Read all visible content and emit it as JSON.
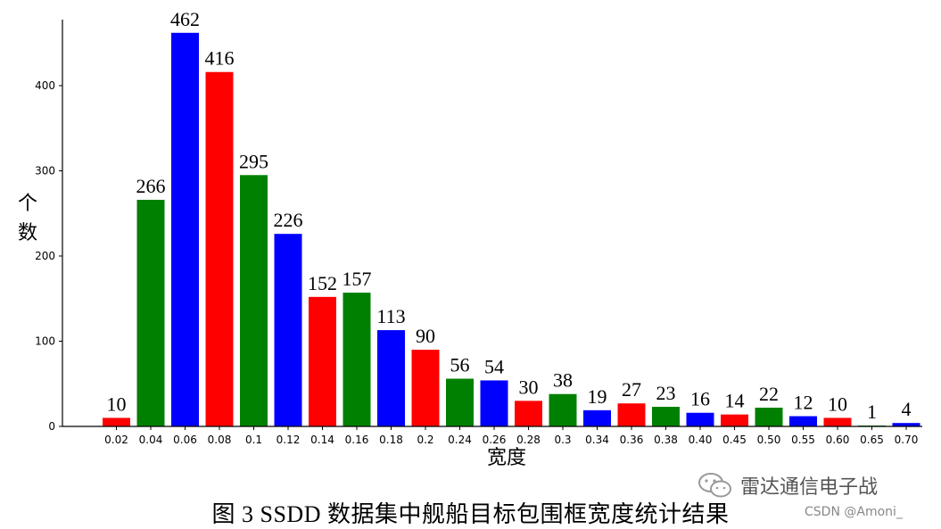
{
  "chart_data": {
    "type": "bar",
    "title": "",
    "xlabel": "宽度",
    "ylabel": "个数",
    "ylim": [
      0,
      470
    ],
    "yticks": [
      0,
      100,
      200,
      300,
      400
    ],
    "categories": [
      "0.02",
      "0.04",
      "0.06",
      "0.08",
      "0.1",
      "0.12",
      "0.14",
      "0.16",
      "0.18",
      "0.2",
      "0.24",
      "0.26",
      "0.28",
      "0.3",
      "0.34",
      "0.36",
      "0.38",
      "0.40",
      "0.45",
      "0.50",
      "0.55",
      "0.60",
      "0.65",
      "0.70"
    ],
    "values": [
      10,
      266,
      462,
      416,
      295,
      226,
      152,
      157,
      113,
      90,
      56,
      54,
      30,
      38,
      19,
      27,
      23,
      16,
      14,
      22,
      12,
      10,
      1,
      4
    ],
    "bar_colors": [
      "#ff0000",
      "#008000",
      "#0000ff",
      "#ff0000",
      "#008000",
      "#0000ff",
      "#ff0000",
      "#008000",
      "#0000ff",
      "#ff0000",
      "#008000",
      "#0000ff",
      "#ff0000",
      "#008000",
      "#0000ff",
      "#ff0000",
      "#008000",
      "#0000ff",
      "#ff0000",
      "#008000",
      "#0000ff",
      "#ff0000",
      "#008000",
      "#0000ff"
    ],
    "grid": false,
    "legend": "none"
  },
  "caption": "图 3 SSDD 数据集中舰船目标包围框宽度统计结果",
  "watermark": {
    "main": "雷达通信电子战",
    "sub": "CSDN @Amoni_",
    "icon": "wechat-icon"
  }
}
